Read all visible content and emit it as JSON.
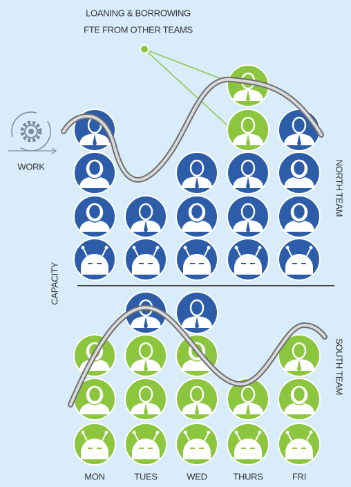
{
  "annotation": {
    "lines": [
      "LOANING & BORROWING",
      "FTE FROM OTHER TEAMS"
    ]
  },
  "work_label": "WORK",
  "capacity_label": "CAPACITY",
  "teams": [
    "NORTH TEAM",
    "SOUTH TEAM"
  ],
  "days": [
    "MON",
    "TUES",
    "WED",
    "THURS",
    "FRI"
  ]
}
